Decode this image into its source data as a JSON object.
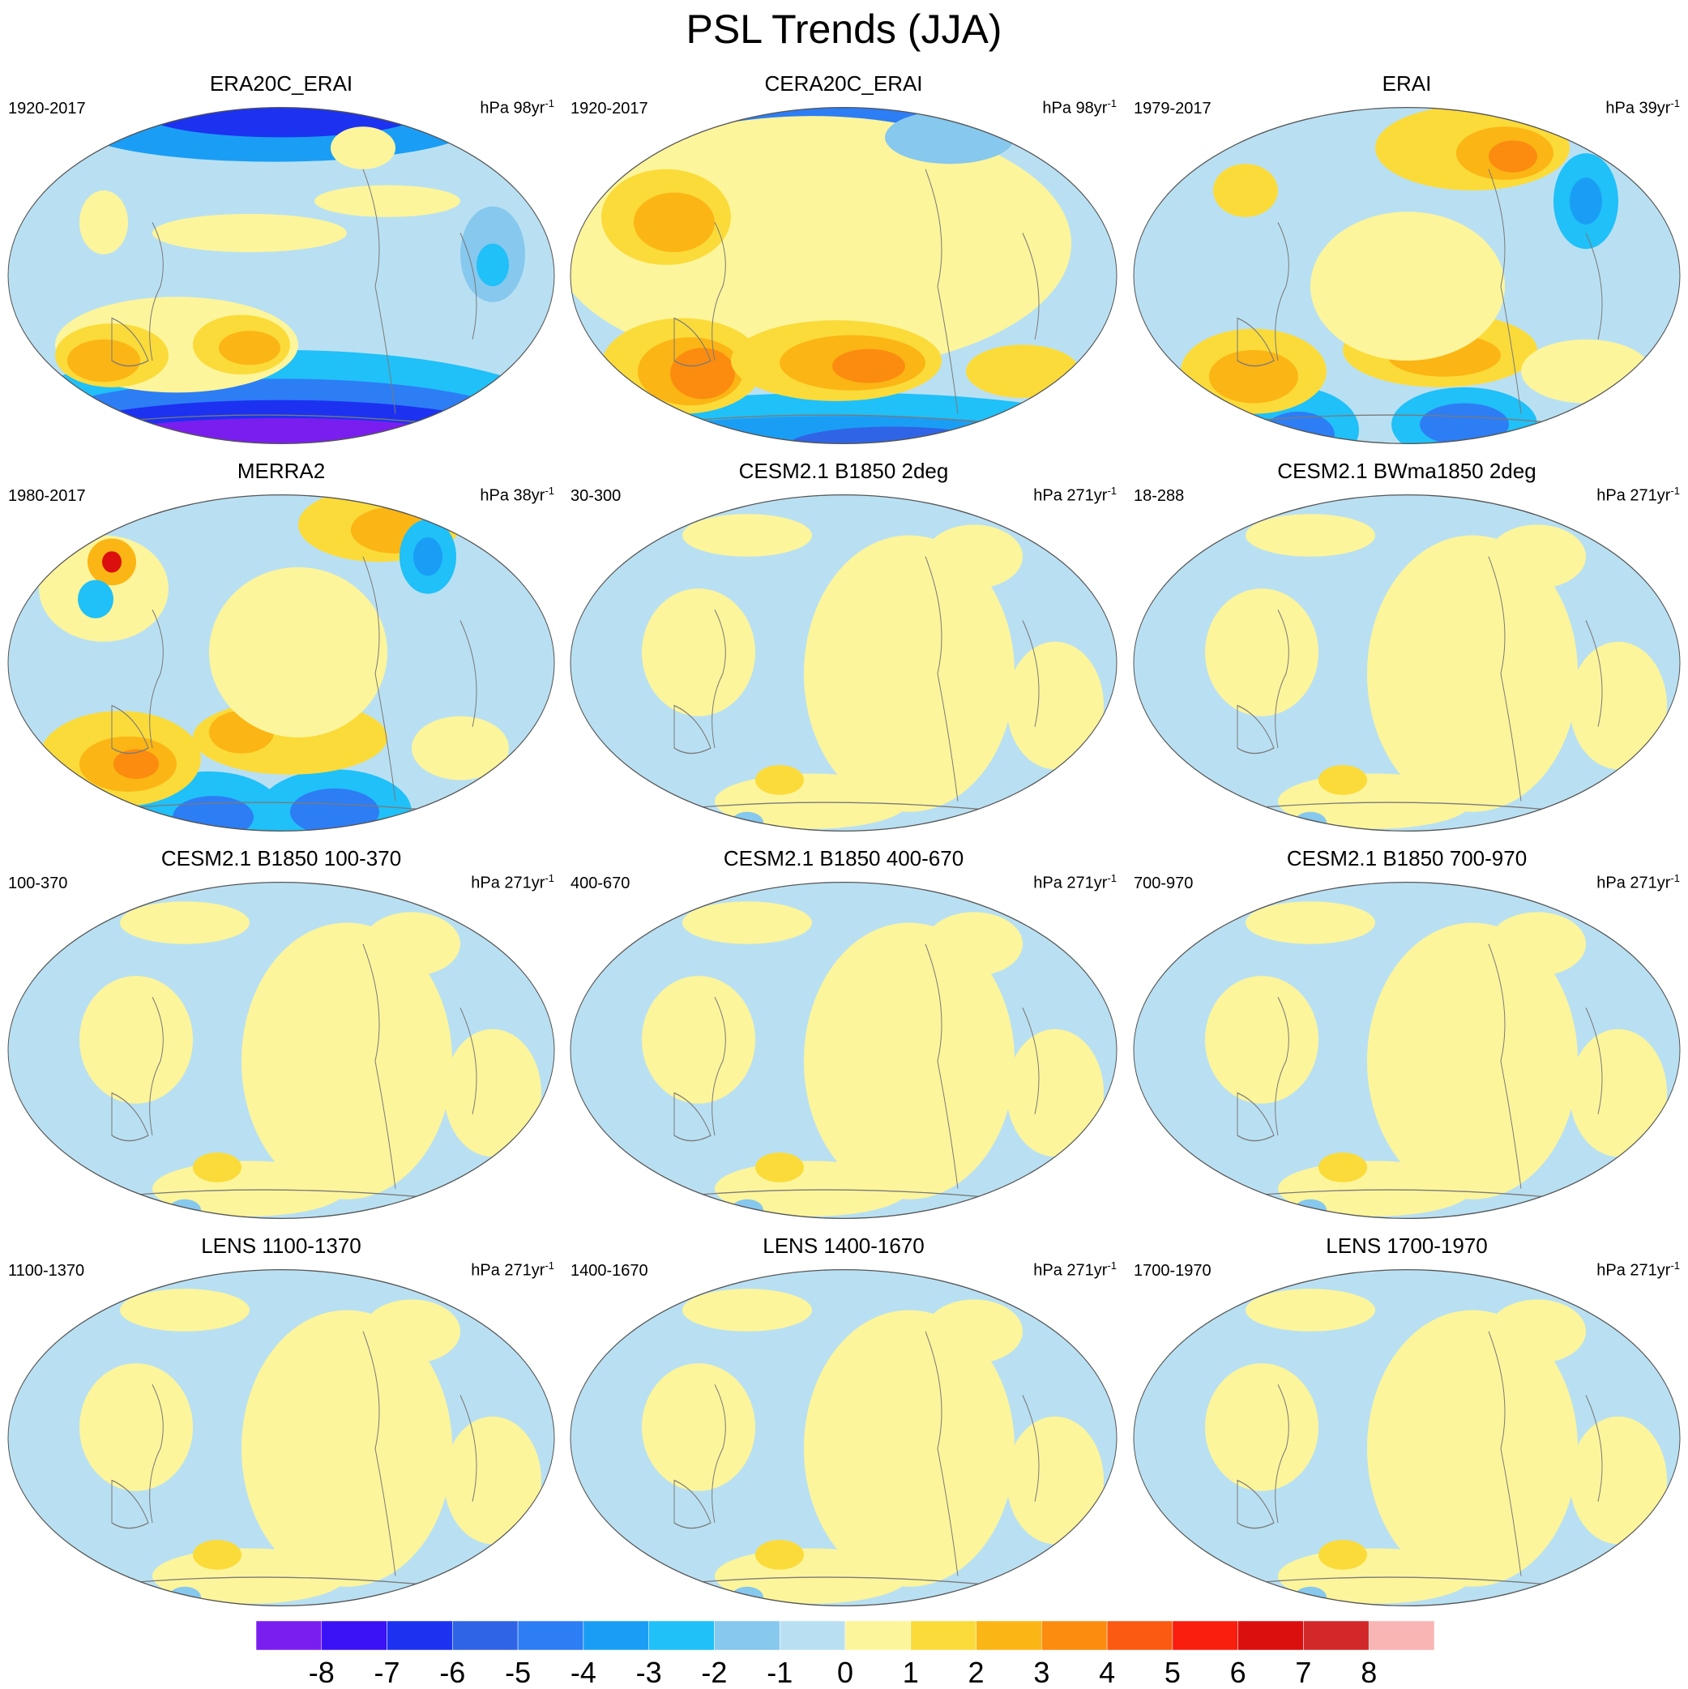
{
  "title": "PSL Trends (JJA)",
  "panels": [
    {
      "title": "ERA20C_ERAI",
      "period": "1920-2017",
      "units_base": "hPa 98yr",
      "units_sup": "-1",
      "regime": "era20c"
    },
    {
      "title": "CERA20C_ERAI",
      "period": "1920-2017",
      "units_base": "hPa 98yr",
      "units_sup": "-1",
      "regime": "cera20c"
    },
    {
      "title": "ERAI",
      "period": "1979-2017",
      "units_base": "hPa 39yr",
      "units_sup": "-1",
      "regime": "erai"
    },
    {
      "title": "MERRA2",
      "period": "1980-2017",
      "units_base": "hPa 38yr",
      "units_sup": "-1",
      "regime": "merra2"
    },
    {
      "title": "CESM2.1 B1850 2deg",
      "period": "30-300",
      "units_base": "hPa 271yr",
      "units_sup": "-1",
      "regime": "model"
    },
    {
      "title": "CESM2.1 BWma1850 2deg",
      "period": "18-288",
      "units_base": "hPa 271yr",
      "units_sup": "-1",
      "regime": "model"
    },
    {
      "title": "CESM2.1 B1850 100-370",
      "period": "100-370",
      "units_base": "hPa 271yr",
      "units_sup": "-1",
      "regime": "model"
    },
    {
      "title": "CESM2.1 B1850 400-670",
      "period": "400-670",
      "units_base": "hPa 271yr",
      "units_sup": "-1",
      "regime": "model"
    },
    {
      "title": "CESM2.1 B1850 700-970",
      "period": "700-970",
      "units_base": "hPa 271yr",
      "units_sup": "-1",
      "regime": "model"
    },
    {
      "title": "LENS 1100-1370",
      "period": "1100-1370",
      "units_base": "hPa 271yr",
      "units_sup": "-1",
      "regime": "model"
    },
    {
      "title": "LENS 1400-1670",
      "period": "1400-1670",
      "units_base": "hPa 271yr",
      "units_sup": "-1",
      "regime": "model"
    },
    {
      "title": "LENS 1700-1970",
      "period": "1700-1970",
      "units_base": "hPa 271yr",
      "units_sup": "-1",
      "regime": "model"
    }
  ],
  "colorbar": {
    "colors": [
      "#7a1ef0",
      "#3a12f5",
      "#1c32f0",
      "#3064e6",
      "#2d7df5",
      "#1a9ef5",
      "#20c0f8",
      "#86c8ee",
      "#b9e0f2",
      "#fdf59b",
      "#fbdb3a",
      "#fbb514",
      "#fb8c0f",
      "#fb5a12",
      "#fa1e0e",
      "#dc0f0f",
      "#d2282a",
      "#f9b4b4"
    ],
    "tick_labels": [
      "-8",
      "-7",
      "-6",
      "-5",
      "-4",
      "-3",
      "-2",
      "-1",
      "0",
      "1",
      "2",
      "3",
      "4",
      "5",
      "6",
      "7",
      "8"
    ]
  }
}
